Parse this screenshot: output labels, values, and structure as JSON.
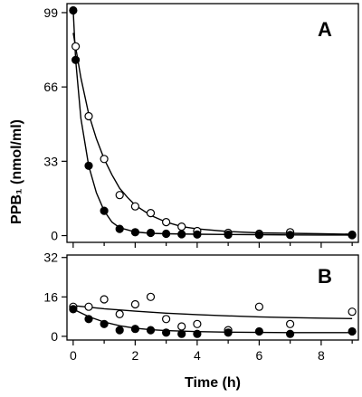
{
  "chart_data": {
    "type": "scatter",
    "ylabel": "PPB₁ (nmol/ml)",
    "xlabel": "Time (h)",
    "x_ticks": [
      "0",
      "2",
      "4",
      "6",
      "8"
    ],
    "xlim": [
      -0.2,
      9.2
    ],
    "panels": [
      {
        "label": "A",
        "ylim": [
          -3,
          103
        ],
        "y_ticks": [
          "0",
          "33",
          "66",
          "99"
        ],
        "y_tick_values": [
          0,
          33,
          66,
          99
        ],
        "series": [
          {
            "marker": "open-circle",
            "x": [
              0.08,
              0.5,
              1.0,
              1.5,
              2.0,
              2.5,
              3.0,
              3.5,
              4.0,
              5.0,
              6.0,
              7.0,
              9.0
            ],
            "y": [
              84,
              53,
              34,
              18,
              13,
              10,
              6,
              4,
              2,
              1.2,
              0.8,
              1.5,
              0.4
            ],
            "fit_x": [
              0.0,
              0.1,
              0.25,
              0.5,
              0.75,
              1.0,
              1.25,
              1.5,
              1.75,
              2.0,
              2.5,
              3.0,
              3.5,
              4.0,
              5.0,
              6.0,
              7.0,
              8.0,
              9.0
            ],
            "fit_y": [
              90,
              82,
              70,
              54,
              43,
              34,
              27,
              21,
              17,
              13.5,
              9,
              6,
              4,
              3,
              1.8,
              1.2,
              1.0,
              0.8,
              0.6
            ]
          },
          {
            "marker": "filled-circle",
            "x": [
              0.0,
              0.08,
              0.5,
              1.0,
              1.5,
              2.0,
              2.5,
              3.0,
              3.5,
              4.0,
              5.0,
              6.0,
              7.0,
              9.0
            ],
            "y": [
              100,
              78,
              31,
              11,
              3,
              1.5,
              1.2,
              0.8,
              0.6,
              0.5,
              0.4,
              0.3,
              0.3,
              0.2
            ],
            "fit_x": [
              0.0,
              0.08,
              0.25,
              0.5,
              0.75,
              1.0,
              1.25,
              1.5,
              2.0,
              2.5,
              3.0,
              4.0,
              5.0,
              6.0,
              7.0,
              8.0,
              9.0
            ],
            "fit_y": [
              100,
              78,
              52,
              31,
              19,
              11,
              6,
              3.5,
              1.6,
              1.0,
              0.8,
              0.6,
              0.5,
              0.4,
              0.3,
              0.25,
              0.2
            ]
          }
        ]
      },
      {
        "label": "B",
        "ylim": [
          -1.5,
          33
        ],
        "y_ticks": [
          "0",
          "16",
          "32"
        ],
        "y_tick_values": [
          0,
          16,
          32
        ],
        "series": [
          {
            "marker": "open-circle",
            "x": [
              0.0,
              0.5,
              1.0,
              1.5,
              2.0,
              2.5,
              3.0,
              3.5,
              4.0,
              5.0,
              6.0,
              7.0,
              9.0
            ],
            "y": [
              12,
              12,
              15,
              9,
              13,
              16,
              7,
              4,
              5,
              2.5,
              12,
              5,
              10
            ],
            "fit_x": [
              0.0,
              1.0,
              2.0,
              3.0,
              4.0,
              5.0,
              6.0,
              7.0,
              8.0,
              9.0
            ],
            "fit_y": [
              12.5,
              11.2,
              10.2,
              9.4,
              8.8,
              8.3,
              7.9,
              7.6,
              7.4,
              7.2
            ]
          },
          {
            "marker": "filled-circle",
            "x": [
              0.0,
              0.5,
              1.0,
              1.5,
              2.0,
              2.5,
              3.0,
              3.5,
              4.0,
              5.0,
              6.0,
              7.0,
              9.0
            ],
            "y": [
              11,
              7,
              5,
              2.5,
              3,
              2.5,
              1.5,
              1,
              1,
              1.5,
              2,
              1,
              2
            ],
            "fit_x": [
              0.0,
              0.5,
              1.0,
              1.5,
              2.0,
              2.5,
              3.0,
              4.0,
              5.0,
              6.0,
              7.0,
              8.0,
              9.0
            ],
            "fit_y": [
              11,
              8,
              5.8,
              4.3,
              3.3,
              2.7,
              2.3,
              1.9,
              1.7,
              1.6,
              1.5,
              1.5,
              1.5
            ]
          }
        ]
      }
    ]
  }
}
